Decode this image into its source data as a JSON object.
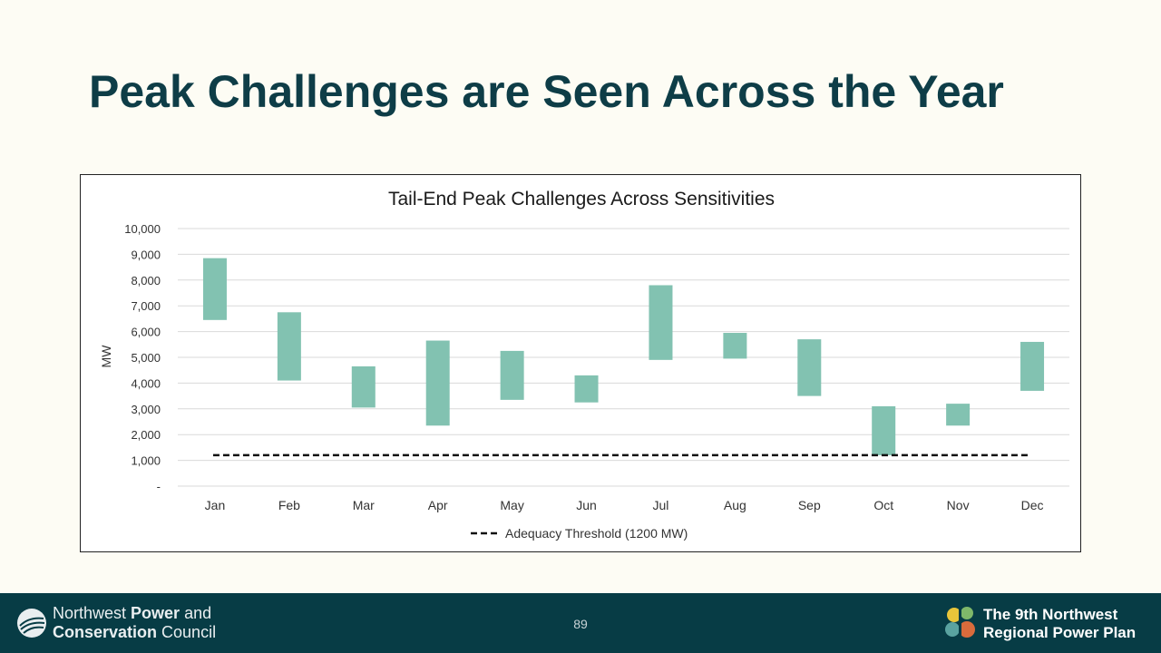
{
  "slide": {
    "title": "Peak Challenges are Seen Across the Year",
    "page_number": "89"
  },
  "footer": {
    "org_line1_pre": "Northwest ",
    "org_line1_bold": "Power",
    "org_line1_post": " and",
    "org_line2_bold": "Conservation",
    "org_line2_post": " Council",
    "plan_line1": "The 9th Northwest",
    "plan_line2": "Regional Power Plan"
  },
  "chart_data": {
    "type": "bar",
    "subtype": "floating-range",
    "title": "Tail-End Peak Challenges Across Sensitivities",
    "ylabel": "MW",
    "xlabel": "",
    "categories": [
      "Jan",
      "Feb",
      "Mar",
      "Apr",
      "May",
      "Jun",
      "Jul",
      "Aug",
      "Sep",
      "Oct",
      "Nov",
      "Dec"
    ],
    "series": [
      {
        "low": [
          6450,
          4100,
          3050,
          2350,
          3350,
          3250,
          4900,
          4950,
          3500,
          1200,
          2350,
          3700
        ],
        "high": [
          8850,
          6750,
          4650,
          5650,
          5250,
          4300,
          7800,
          5950,
          5700,
          3100,
          3200,
          5600
        ],
        "color": "#82c2b1"
      }
    ],
    "threshold": {
      "name": "Adequacy Threshold (1200 MW)",
      "value": 1200,
      "style": "dashed",
      "color": "#111111"
    },
    "ylim": [
      0,
      10000
    ],
    "yticks": [
      0,
      1000,
      2000,
      3000,
      4000,
      5000,
      6000,
      7000,
      8000,
      9000,
      10000
    ],
    "ytick_labels": [
      "-",
      "1,000",
      "2,000",
      "3,000",
      "4,000",
      "5,000",
      "6,000",
      "7,000",
      "8,000",
      "9,000",
      "10,000"
    ],
    "grid": true,
    "legend": "bottom"
  }
}
